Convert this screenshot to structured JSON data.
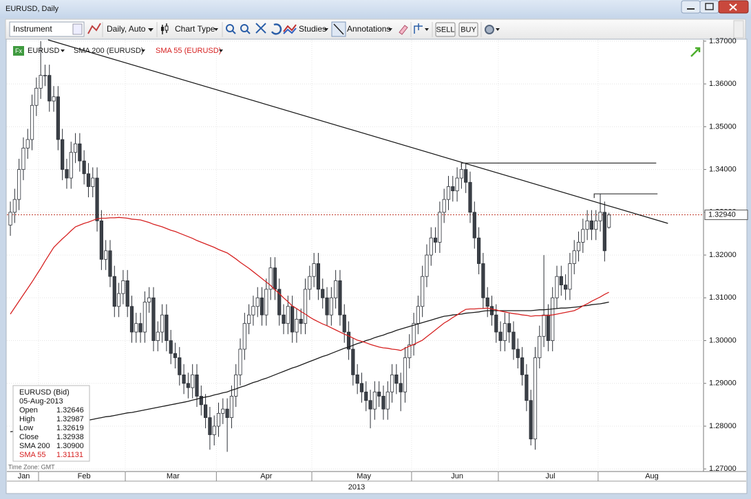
{
  "window": {
    "title": "EURUSD, Daily"
  },
  "toolbar": {
    "instrument": "Instrument",
    "period": "Daily, Auto",
    "chart_type": "Chart Type",
    "studies": "Studies",
    "annotations": "Annotations",
    "sell": "SELL",
    "buy": "BUY"
  },
  "legend": {
    "icon": "Fx"
  },
  "chart_data": {
    "type": "candlestick",
    "name": "EURUSD",
    "up_color": "#ffffff",
    "down_color": "#3b4047",
    "open": [
      1.327,
      1.33,
      1.333,
      1.34,
      1.345,
      1.347,
      1.355,
      1.359,
      1.362,
      1.362,
      1.356,
      1.357,
      1.347,
      1.34,
      1.338,
      1.344,
      1.346,
      1.342,
      1.339,
      1.336,
      1.338,
      1.328,
      1.319,
      1.321,
      1.315,
      1.308,
      1.311,
      1.314,
      1.308,
      1.302,
      1.304,
      1.302,
      1.309,
      1.31,
      1.3,
      1.302,
      1.306,
      1.3,
      1.297,
      1.296,
      1.292,
      1.29,
      1.289,
      1.292,
      1.287,
      1.285,
      1.282,
      1.278,
      1.28,
      1.283,
      1.284,
      1.282,
      1.287,
      1.292,
      1.298,
      1.304,
      1.306,
      1.308,
      1.31,
      1.306,
      1.312,
      1.317,
      1.312,
      1.306,
      1.304,
      1.308,
      1.302,
      1.305,
      1.304,
      1.312,
      1.315,
      1.318,
      1.312,
      1.31,
      1.306,
      1.31,
      1.314,
      1.306,
      1.302,
      1.298,
      1.292,
      1.29,
      1.288,
      1.286,
      1.284,
      1.288,
      1.287,
      1.284,
      1.288,
      1.292,
      1.29,
      1.288,
      1.296,
      1.299,
      1.304,
      1.308,
      1.315,
      1.32,
      1.324,
      1.323,
      1.33,
      1.333,
      1.336,
      1.335,
      1.338,
      1.34,
      1.337,
      1.33,
      1.324,
      1.318,
      1.31,
      1.308,
      1.306,
      1.302,
      1.3,
      1.304,
      1.302,
      1.298,
      1.296,
      1.292,
      1.286,
      1.277,
      1.296,
      1.301,
      1.306,
      1.3,
      1.31,
      1.315,
      1.313,
      1.312,
      1.318,
      1.321,
      1.323,
      1.326,
      1.328,
      1.326,
      1.328,
      1.33,
      1.32646
    ],
    "high": [
      1.3325,
      1.3355,
      1.3425,
      1.3475,
      1.3495,
      1.3575,
      1.3615,
      1.37,
      1.3645,
      1.3645,
      1.3595,
      1.3595,
      1.3495,
      1.3425,
      1.3465,
      1.3485,
      1.3485,
      1.3445,
      1.3415,
      1.3405,
      1.3405,
      1.3305,
      1.3235,
      1.3235,
      1.3175,
      1.3135,
      1.3165,
      1.3165,
      1.3105,
      1.3065,
      1.3065,
      1.3115,
      1.3125,
      1.3125,
      1.3045,
      1.3085,
      1.3085,
      1.3025,
      1.2995,
      1.2985,
      1.2945,
      1.2925,
      1.2945,
      1.2945,
      1.2895,
      1.2875,
      1.2845,
      1.2825,
      1.2855,
      1.2865,
      1.2865,
      1.2895,
      1.2945,
      1.3005,
      1.3065,
      1.3085,
      1.3105,
      1.3125,
      1.3125,
      1.3145,
      1.3195,
      1.3195,
      1.3145,
      1.3085,
      1.3105,
      1.3105,
      1.3075,
      1.3075,
      1.3145,
      1.3175,
      1.3205,
      1.3205,
      1.3145,
      1.3125,
      1.3125,
      1.3165,
      1.3165,
      1.3085,
      1.3045,
      1.3005,
      1.2945,
      1.2925,
      1.2905,
      1.2885,
      1.2905,
      1.2905,
      1.2895,
      1.2905,
      1.2945,
      1.2945,
      1.2925,
      1.2985,
      1.3015,
      1.3065,
      1.3105,
      1.3175,
      1.3225,
      1.3265,
      1.3265,
      1.3325,
      1.3355,
      1.3385,
      1.3385,
      1.3405,
      1.3415,
      1.3415,
      1.3395,
      1.3325,
      1.3265,
      1.3205,
      1.3125,
      1.3105,
      1.3085,
      1.3045,
      1.3065,
      1.3065,
      1.3045,
      1.3005,
      1.2985,
      1.2945,
      1.2885,
      1.2985,
      1.3035,
      1.32,
      1.3085,
      1.3125,
      1.3175,
      1.3175,
      1.3155,
      1.3205,
      1.3235,
      1.3255,
      1.3285,
      1.3305,
      1.3305,
      1.3305,
      1.3343,
      1.3325,
      1.32987
    ],
    "low": [
      1.3245,
      1.3275,
      1.3305,
      1.3375,
      1.3425,
      1.3445,
      1.3525,
      1.3565,
      1.3595,
      1.3535,
      1.3535,
      1.3445,
      1.3375,
      1.3355,
      1.3355,
      1.3415,
      1.3395,
      1.3365,
      1.3335,
      1.3335,
      1.3255,
      1.3165,
      1.3165,
      1.3125,
      1.3055,
      1.3055,
      1.3085,
      1.3055,
      1.2995,
      1.2995,
      1.2995,
      1.2995,
      1.3065,
      1.2975,
      1.2975,
      1.2995,
      1.2975,
      1.2945,
      1.2935,
      1.2895,
      1.2875,
      1.2865,
      1.2865,
      1.2845,
      1.2825,
      1.2795,
      1.2745,
      1.2755,
      1.2775,
      1.2805,
      1.274,
      1.2795,
      1.2845,
      1.2895,
      1.2955,
      1.3015,
      1.3035,
      1.3055,
      1.3035,
      1.3035,
      1.3095,
      1.3095,
      1.3035,
      1.3015,
      1.3015,
      1.2995,
      1.2995,
      1.3015,
      1.3015,
      1.3095,
      1.3125,
      1.3095,
      1.3075,
      1.3035,
      1.3035,
      1.3075,
      1.3035,
      1.2995,
      1.2955,
      1.2895,
      1.2875,
      1.2855,
      1.2835,
      1.2795,
      1.2815,
      1.2845,
      1.2815,
      1.2815,
      1.2855,
      1.2875,
      1.2835,
      1.2855,
      1.2935,
      1.2965,
      1.3015,
      1.3055,
      1.3125,
      1.3175,
      1.3205,
      1.3205,
      1.3275,
      1.3305,
      1.3325,
      1.3325,
      1.3355,
      1.3345,
      1.3275,
      1.3215,
      1.3155,
      1.3075,
      1.3055,
      1.3035,
      1.2995,
      1.2975,
      1.2975,
      1.2995,
      1.2955,
      1.2935,
      1.2895,
      1.2835,
      1.2755,
      1.2745,
      1.2935,
      1.2985,
      1.2975,
      1.2975,
      1.3075,
      1.3105,
      1.3095,
      1.3095,
      1.3155,
      1.3185,
      1.3205,
      1.3235,
      1.3235,
      1.3235,
      1.3255,
      1.3185,
      1.32619
    ],
    "close": [
      1.33,
      1.333,
      1.34,
      1.345,
      1.347,
      1.355,
      1.359,
      1.362,
      1.362,
      1.356,
      1.357,
      1.347,
      1.34,
      1.338,
      1.344,
      1.346,
      1.342,
      1.339,
      1.336,
      1.338,
      1.328,
      1.319,
      1.321,
      1.315,
      1.308,
      1.311,
      1.314,
      1.308,
      1.302,
      1.304,
      1.302,
      1.309,
      1.31,
      1.3,
      1.302,
      1.306,
      1.3,
      1.297,
      1.296,
      1.292,
      1.29,
      1.289,
      1.292,
      1.287,
      1.285,
      1.282,
      1.278,
      1.28,
      1.283,
      1.284,
      1.282,
      1.287,
      1.292,
      1.298,
      1.304,
      1.306,
      1.308,
      1.31,
      1.306,
      1.312,
      1.317,
      1.312,
      1.306,
      1.304,
      1.308,
      1.302,
      1.305,
      1.304,
      1.312,
      1.315,
      1.318,
      1.312,
      1.31,
      1.306,
      1.31,
      1.314,
      1.306,
      1.302,
      1.298,
      1.292,
      1.29,
      1.288,
      1.286,
      1.284,
      1.288,
      1.287,
      1.284,
      1.288,
      1.292,
      1.29,
      1.288,
      1.296,
      1.299,
      1.304,
      1.308,
      1.315,
      1.32,
      1.324,
      1.323,
      1.33,
      1.333,
      1.336,
      1.335,
      1.338,
      1.34,
      1.337,
      1.33,
      1.324,
      1.318,
      1.31,
      1.308,
      1.306,
      1.302,
      1.3,
      1.304,
      1.302,
      1.298,
      1.296,
      1.292,
      1.286,
      1.277,
      1.296,
      1.301,
      1.306,
      1.3,
      1.31,
      1.315,
      1.313,
      1.312,
      1.318,
      1.321,
      1.323,
      1.326,
      1.328,
      1.326,
      1.328,
      1.33,
      1.321,
      1.32938
    ],
    "series": [
      {
        "name": "SMA 200 (EURUSD)",
        "color": "#1a1a1a",
        "values": [
          1.2787,
          1.2788,
          1.279,
          1.2791,
          1.2792,
          1.2794,
          1.2795,
          1.2796,
          1.2797,
          1.2799,
          1.28,
          1.2802,
          1.2804,
          1.2805,
          1.2807,
          1.2809,
          1.2811,
          1.2813,
          1.2814,
          1.2816,
          1.2818,
          1.282,
          1.2822,
          1.2823,
          1.2825,
          1.2827,
          1.2829,
          1.2831,
          1.2832,
          1.2834,
          1.2836,
          1.2838,
          1.284,
          1.2842,
          1.2844,
          1.2846,
          1.2848,
          1.285,
          1.2852,
          1.2854,
          1.2856,
          1.2858,
          1.2861,
          1.2863,
          1.2866,
          1.2868,
          1.287,
          1.2873,
          1.2875,
          1.2878,
          1.288,
          1.2884,
          1.2887,
          1.2891,
          1.2894,
          1.2898,
          1.2902,
          1.2905,
          1.2909,
          1.2912,
          1.2916,
          1.292,
          1.2924,
          1.2928,
          1.2932,
          1.2936,
          1.2939,
          1.2943,
          1.2947,
          1.2951,
          1.2955,
          1.2959,
          1.2963,
          1.2966,
          1.297,
          1.2974,
          1.2978,
          1.2982,
          1.2985,
          1.2989,
          1.2993,
          1.2996,
          1.3,
          1.3003,
          1.3007,
          1.301,
          1.3013,
          1.3017,
          1.302,
          1.3024,
          1.3027,
          1.303,
          1.3033,
          1.3036,
          1.3039,
          1.3042,
          1.3045,
          1.3048,
          1.3051,
          1.3054,
          1.3057,
          1.3058,
          1.306,
          1.3061,
          1.3062,
          1.3064,
          1.3065,
          1.3066,
          1.3067,
          1.3069,
          1.307,
          1.307,
          1.307,
          1.307,
          1.307,
          1.307,
          1.307,
          1.307,
          1.307,
          1.307,
          1.307,
          1.3071,
          1.3072,
          1.3072,
          1.3073,
          1.3074,
          1.3075,
          1.3076,
          1.3076,
          1.3077,
          1.3078,
          1.3079,
          1.3081,
          1.3082,
          1.3084,
          1.3085,
          1.3086,
          1.3088,
          1.309
        ]
      },
      {
        "name": "SMA 55 (EURUSD)",
        "color": "#d62020",
        "values": [
          1.3062,
          1.3077,
          1.3092,
          1.3107,
          1.3122,
          1.3137,
          1.3153,
          1.3169,
          1.3186,
          1.3202,
          1.3218,
          1.3228,
          1.3238,
          1.3247,
          1.3257,
          1.3266,
          1.327,
          1.3274,
          1.3277,
          1.3281,
          1.3285,
          1.3286,
          1.3286,
          1.3287,
          1.3287,
          1.3288,
          1.3287,
          1.3286,
          1.3284,
          1.3283,
          1.3282,
          1.3279,
          1.3276,
          1.3272,
          1.3269,
          1.3266,
          1.3262,
          1.3258,
          1.3255,
          1.3251,
          1.3247,
          1.3243,
          1.3239,
          1.3234,
          1.323,
          1.3226,
          1.3222,
          1.3218,
          1.3213,
          1.3209,
          1.3205,
          1.3198,
          1.3191,
          1.3183,
          1.3176,
          1.3169,
          1.3161,
          1.3153,
          1.3145,
          1.3137,
          1.3129,
          1.3119,
          1.311,
          1.31,
          1.3091,
          1.3081,
          1.3075,
          1.3068,
          1.3062,
          1.3055,
          1.3049,
          1.3044,
          1.3039,
          1.3035,
          1.303,
          1.3025,
          1.302,
          1.3015,
          1.3011,
          1.3006,
          1.3001,
          1.2998,
          1.2995,
          1.2991,
          1.2988,
          1.2985,
          1.2983,
          1.2982,
          1.298,
          1.2979,
          1.2977,
          1.2982,
          1.2987,
          1.2991,
          1.2996,
          1.3001,
          1.3009,
          1.3017,
          1.3025,
          1.3033,
          1.3041,
          1.3047,
          1.3054,
          1.306,
          1.3067,
          1.3073,
          1.3074,
          1.3074,
          1.3075,
          1.3075,
          1.3076,
          1.3074,
          1.3072,
          1.3069,
          1.3067,
          1.3065,
          1.3063,
          1.3062,
          1.306,
          1.3059,
          1.3057,
          1.3058,
          1.3058,
          1.3059,
          1.3059,
          1.306,
          1.3062,
          1.3064,
          1.3066,
          1.3068,
          1.307,
          1.3075,
          1.3081,
          1.3086,
          1.3092,
          1.3097,
          1.3102,
          1.3108,
          1.3113
        ]
      }
    ],
    "xlim": [
      -0.8,
      159.8
    ],
    "xticks": [
      {
        "value": -15,
        "label": "Jan"
      },
      {
        "value": 7,
        "label": "Feb"
      },
      {
        "value": 27,
        "label": "Mar"
      },
      {
        "value": 48,
        "label": "Apr"
      },
      {
        "value": 70,
        "label": "May"
      },
      {
        "value": 93,
        "label": "Jun"
      },
      {
        "value": 113,
        "label": "Jul"
      },
      {
        "value": 136,
        "label": "Aug"
      }
    ],
    "year_label": "2013",
    "ylim": [
      1.2694,
      1.3703
    ],
    "yticks": [
      {
        "value": 1.27,
        "label": "1.27000"
      },
      {
        "value": 1.28,
        "label": "1.28000"
      },
      {
        "value": 1.29,
        "label": "1.29000"
      },
      {
        "value": 1.3,
        "label": "1.30000"
      },
      {
        "value": 1.31,
        "label": "1.31000"
      },
      {
        "value": 1.32,
        "label": "1.32000"
      },
      {
        "value": 1.33,
        "label": "1.33000"
      },
      {
        "value": 1.34,
        "label": "1.34000"
      },
      {
        "value": 1.35,
        "label": "1.35000"
      },
      {
        "value": 1.36,
        "label": "1.36000"
      },
      {
        "value": 1.37,
        "label": "1.37000"
      }
    ],
    "grid": true,
    "current_price": {
      "value": 1.3294,
      "label": "1.32940"
    },
    "trendlines": [
      {
        "x": [
          8.7,
          151.6
        ],
        "y": [
          1.3703,
          1.3274
        ]
      }
    ],
    "hlines": [
      {
        "x": [
          104,
          148.9
        ],
        "y": 1.3415
      },
      {
        "x": [
          134.6,
          149.2
        ],
        "y": 1.3343
      }
    ],
    "time_zone": "Time Zone: GMT"
  },
  "info_panel": {
    "title": "EURUSD (Bid)",
    "date": "05-Aug-2013",
    "rows": [
      [
        "Open",
        "1.32646"
      ],
      [
        "High",
        "1.32987"
      ],
      [
        "Low",
        "1.32619"
      ],
      [
        "Close",
        "1.32938"
      ],
      [
        "SMA 200",
        "1.30900"
      ],
      [
        "SMA 55",
        "1.31131"
      ]
    ]
  }
}
